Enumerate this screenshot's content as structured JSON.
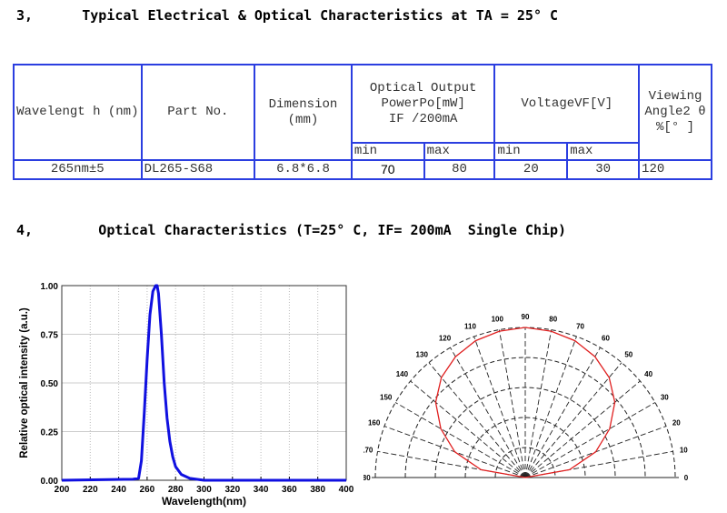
{
  "section3_title": "3,      Typical Electrical & Optical Characteristics at TA = 25° C",
  "section4_title": "4,        Optical Characteristics (T=25° C, IF= 200mA  Single Chip)",
  "table": {
    "headers": {
      "wavelength": "Wavelengt h (nm)",
      "part_no": "Part No.",
      "dimension": "Dimension (mm)",
      "optical_output_1": "Optical Output",
      "optical_output_2": "PowerPo[mW]",
      "optical_output_3": "IF /200mA",
      "voltage": "VoltageVF[V]",
      "viewing_1": "Viewing",
      "viewing_2": "Angle2 θ",
      "viewing_3": "%[° ]",
      "min": "min",
      "max": "max"
    },
    "row": {
      "wavelength": "265nm±5",
      "part_no": "DL265-S68",
      "dimension": "6.8*6.8",
      "po_min": "70",
      "po_max": "80",
      "vf_min": "20",
      "vf_max": "30",
      "viewing_angle": "120"
    }
  },
  "chart_data": [
    {
      "type": "line",
      "title": "",
      "xlabel": "Wavelength(nm)",
      "ylabel": "Relative optical intensity (a.u.)",
      "xlim": [
        200,
        400
      ],
      "ylim": [
        0,
        1
      ],
      "grid": true,
      "xticks": [
        "200",
        "220",
        "240",
        "260",
        "280",
        "300",
        "320",
        "340",
        "360",
        "380",
        "400"
      ],
      "yticks": [
        "0.00",
        "0.25",
        "0.50",
        "0.75",
        "1.00"
      ],
      "series": [
        {
          "name": "spectrum",
          "color": "#1010e0",
          "x": [
            200,
            250,
            254,
            256,
            258,
            260,
            262,
            264,
            266,
            267,
            268,
            270,
            272,
            274,
            276,
            278,
            280,
            284,
            290,
            300,
            400
          ],
          "y": [
            0,
            0.005,
            0.01,
            0.1,
            0.35,
            0.62,
            0.85,
            0.97,
            1.0,
            1.0,
            0.96,
            0.75,
            0.5,
            0.32,
            0.2,
            0.12,
            0.07,
            0.03,
            0.01,
            0,
            0
          ]
        }
      ]
    },
    {
      "type": "polar",
      "title": "",
      "angle_labels": [
        "0",
        "10",
        "20",
        "30",
        "40",
        "50",
        "60",
        "70",
        "80",
        "90",
        "100",
        "110",
        "120",
        "130",
        "140",
        "150",
        "160",
        "170",
        "180"
      ],
      "series": [
        {
          "name": "radiation pattern",
          "color": "#e02020",
          "angle": [
            0,
            10,
            20,
            30,
            40,
            50,
            60,
            70,
            80,
            90,
            100,
            110,
            120,
            130,
            140,
            150,
            160,
            170,
            180
          ],
          "r": [
            0,
            0.3,
            0.5,
            0.65,
            0.78,
            0.87,
            0.93,
            0.97,
            0.99,
            1,
            0.99,
            0.97,
            0.93,
            0.87,
            0.78,
            0.65,
            0.5,
            0.3,
            0
          ]
        }
      ]
    }
  ]
}
